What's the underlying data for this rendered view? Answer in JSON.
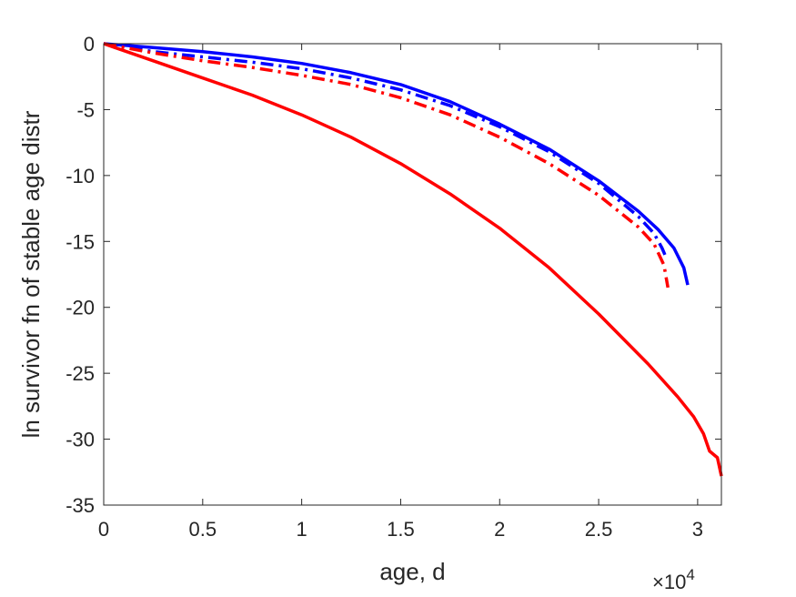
{
  "chart_data": {
    "type": "line",
    "title": "",
    "xlabel": "age, d",
    "ylabel": "ln survivor fn of stable age distr",
    "x_exponent": {
      "base": "×10",
      "power": "4"
    },
    "xlim": [
      0,
      31200
    ],
    "ylim": [
      -35,
      0
    ],
    "x_ticks": [
      0,
      5000,
      10000,
      15000,
      20000,
      25000,
      30000
    ],
    "x_tick_labels": [
      "0",
      "0.5",
      "1",
      "1.5",
      "2",
      "2.5",
      "3"
    ],
    "y_ticks": [
      0,
      -5,
      -10,
      -15,
      -20,
      -25,
      -30,
      -35
    ],
    "y_tick_labels": [
      "0",
      "-5",
      "-10",
      "-15",
      "-20",
      "-25",
      "-30",
      "-35"
    ],
    "grid": false,
    "legend": "none",
    "series": [
      {
        "color": "#0000ff",
        "style": "solid",
        "x": [
          0,
          2500,
          5000,
          7500,
          10000,
          12500,
          15000,
          17500,
          20000,
          22500,
          25000,
          27000,
          28000,
          28800,
          29300,
          29500
        ],
        "y": [
          0,
          -0.3,
          -0.6,
          -1.0,
          -1.5,
          -2.2,
          -3.1,
          -4.4,
          -6.1,
          -8.0,
          -10.4,
          -12.7,
          -14.1,
          -15.5,
          -17.0,
          -18.3
        ]
      },
      {
        "color": "#0000ff",
        "style": "dashdot",
        "x": [
          0,
          2500,
          5000,
          7500,
          10000,
          12500,
          15000,
          17500,
          20000,
          22500,
          25000,
          27000,
          27800,
          28200,
          28400
        ],
        "y": [
          0,
          -0.6,
          -1.0,
          -1.4,
          -1.9,
          -2.6,
          -3.5,
          -4.7,
          -6.3,
          -8.2,
          -10.6,
          -13.1,
          -14.4,
          -15.5,
          -16.2
        ]
      },
      {
        "color": "#ff0000",
        "style": "dashdot",
        "x": [
          0,
          2500,
          5000,
          7500,
          10000,
          12500,
          15000,
          17500,
          20000,
          22500,
          25000,
          27000,
          27800,
          28300,
          28500
        ],
        "y": [
          0,
          -0.7,
          -1.3,
          -1.8,
          -2.4,
          -3.1,
          -4.1,
          -5.4,
          -7.1,
          -9.1,
          -11.5,
          -13.9,
          -15.2,
          -16.8,
          -18.5
        ]
      },
      {
        "color": "#ff0000",
        "style": "solid",
        "x": [
          0,
          2500,
          5000,
          7500,
          10000,
          12500,
          15000,
          17500,
          20000,
          22500,
          25000,
          27500,
          29000,
          29800,
          30300,
          30600,
          31000,
          31200
        ],
        "y": [
          0,
          -1.3,
          -2.6,
          -3.9,
          -5.4,
          -7.1,
          -9.1,
          -11.4,
          -14.0,
          -17.0,
          -20.5,
          -24.3,
          -26.8,
          -28.3,
          -29.6,
          -30.9,
          -31.4,
          -32.8
        ]
      }
    ]
  }
}
